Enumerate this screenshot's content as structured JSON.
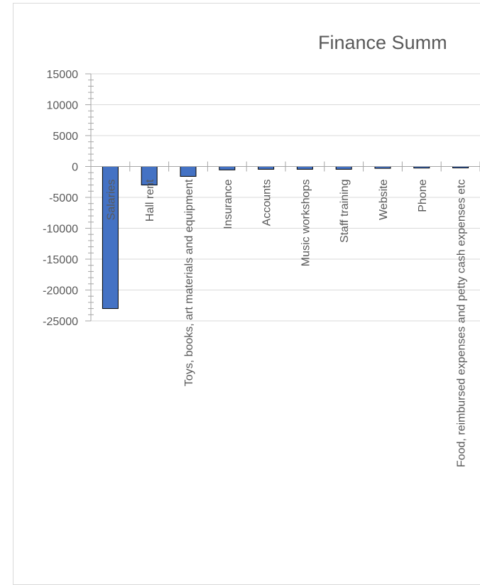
{
  "chart_data": {
    "type": "bar",
    "title": "Finance Summ",
    "xlabel": "",
    "ylabel": "",
    "ylim": [
      -25000,
      15000
    ],
    "y_ticks": [
      15000,
      10000,
      5000,
      0,
      -5000,
      -10000,
      -15000,
      -20000,
      -25000
    ],
    "categories": [
      "Salaries",
      "Hall rent",
      "Toys, books, art materials and equipment",
      "Insurance",
      "Accounts",
      "Music workshops",
      "Staff training",
      "Website",
      "Phone",
      "Food, reimbursed expenses and petty cash expenses etc"
    ],
    "values": [
      -23000,
      -3000,
      -1600,
      -550,
      -450,
      -450,
      -450,
      -300,
      -250,
      -200
    ],
    "bar_color": "#4472c4",
    "bar_edge": "#000000",
    "grid": true,
    "legend": "none"
  }
}
